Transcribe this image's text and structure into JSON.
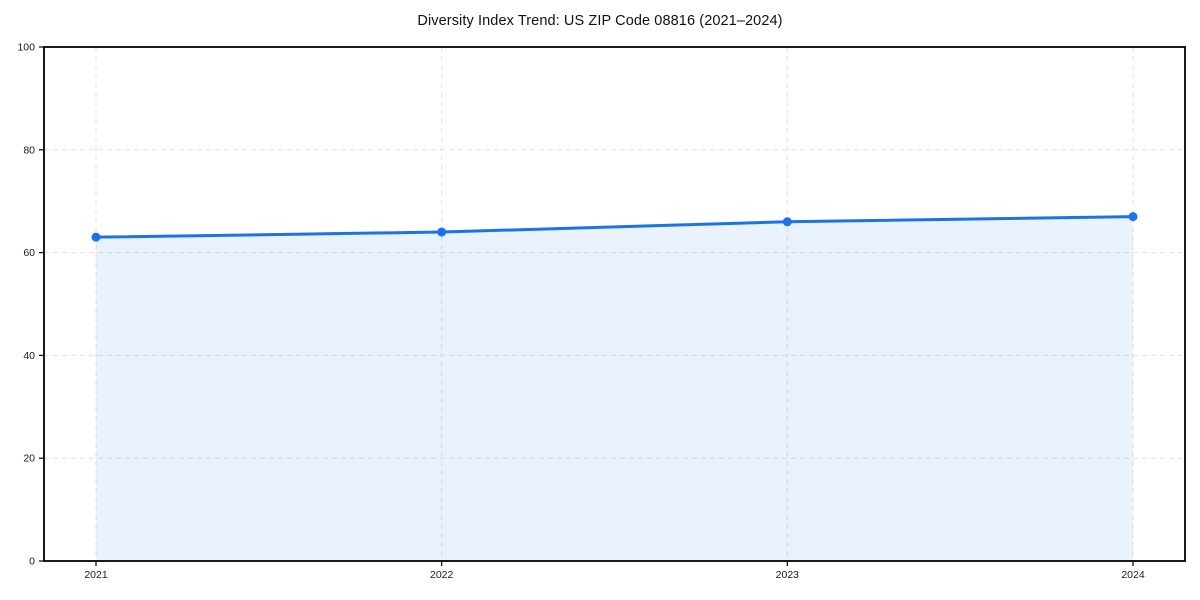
{
  "page": {
    "background": "#ffffff"
  },
  "chart_data": {
    "type": "area",
    "title": "Diversity Index Trend: US ZIP Code 08816 (2021–2024)",
    "x": [
      2021,
      2022,
      2023,
      2024
    ],
    "xticklabels": [
      "2021",
      "2022",
      "2023",
      "2024"
    ],
    "values": [
      63,
      64,
      66,
      67
    ],
    "series_name": "Diversity Index",
    "xlabel": "",
    "ylabel": "",
    "ylim": [
      0,
      100
    ],
    "yticks": [
      0,
      20,
      40,
      60,
      80,
      100
    ],
    "grid": true,
    "grid_style": "dashed",
    "legend": "none",
    "line_color": "#1a73e8",
    "marker_color": "#1a73e8",
    "fill_color": "#1a73e8",
    "fill_opacity": 0.09,
    "axis_color": "#000000",
    "grid_color": "#e2e2e2",
    "tick_label_color": "#1a1a1a"
  }
}
